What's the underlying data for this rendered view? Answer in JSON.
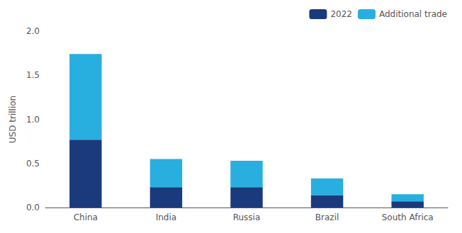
{
  "chart_data": {
    "type": "bar",
    "stacked": true,
    "categories": [
      "China",
      "India",
      "Russia",
      "Brazil",
      "South Africa"
    ],
    "series": [
      {
        "name": "2022",
        "color": "#1a3a7c",
        "values": [
          0.77,
          0.23,
          0.23,
          0.14,
          0.07
        ]
      },
      {
        "name": "Additional trade",
        "color": "#29aee0",
        "values": [
          0.97,
          0.32,
          0.3,
          0.19,
          0.08
        ]
      }
    ],
    "ylabel": "USD trillion",
    "ylim": [
      0,
      2.0
    ],
    "yticks": [
      {
        "value": 0,
        "label": "0.0"
      },
      0.5,
      {
        "value": 1,
        "label": "1.0"
      },
      1.5,
      {
        "value": 2,
        "label": "2.0"
      }
    ],
    "legend": "upper right",
    "grid": false
  }
}
